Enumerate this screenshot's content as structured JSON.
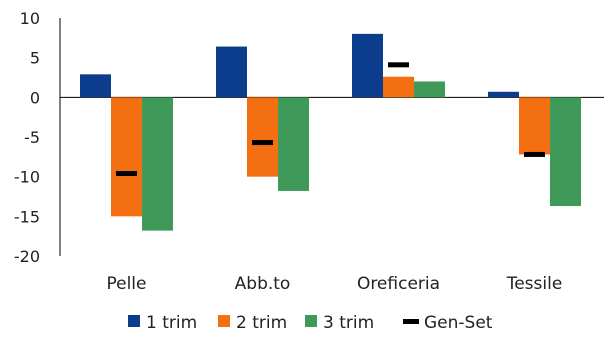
{
  "chart_data": {
    "type": "bar",
    "categories": [
      "Pelle",
      "Abb.to",
      "Oreficeria",
      "Tessile"
    ],
    "series": [
      {
        "name": "1 trim",
        "color": "#0b3d8c",
        "values": [
          2.9,
          6.4,
          8.0,
          0.7
        ]
      },
      {
        "name": "2 trim",
        "color": "#f36f12",
        "values": [
          -15.0,
          -10.0,
          2.6,
          -7.2
        ]
      },
      {
        "name": "3 trim",
        "color": "#3f9a5a",
        "values": [
          -16.8,
          -11.8,
          2.0,
          -13.7
        ]
      }
    ],
    "markers": {
      "name": "Gen-Set",
      "color": "#000000",
      "values": [
        -9.6,
        -5.7,
        4.1,
        -7.2
      ]
    },
    "ylim": [
      -20,
      10
    ],
    "yticks": [
      10,
      5,
      0,
      -5,
      -10,
      -15,
      -20
    ],
    "legend_position": "bottom",
    "grid": false
  }
}
